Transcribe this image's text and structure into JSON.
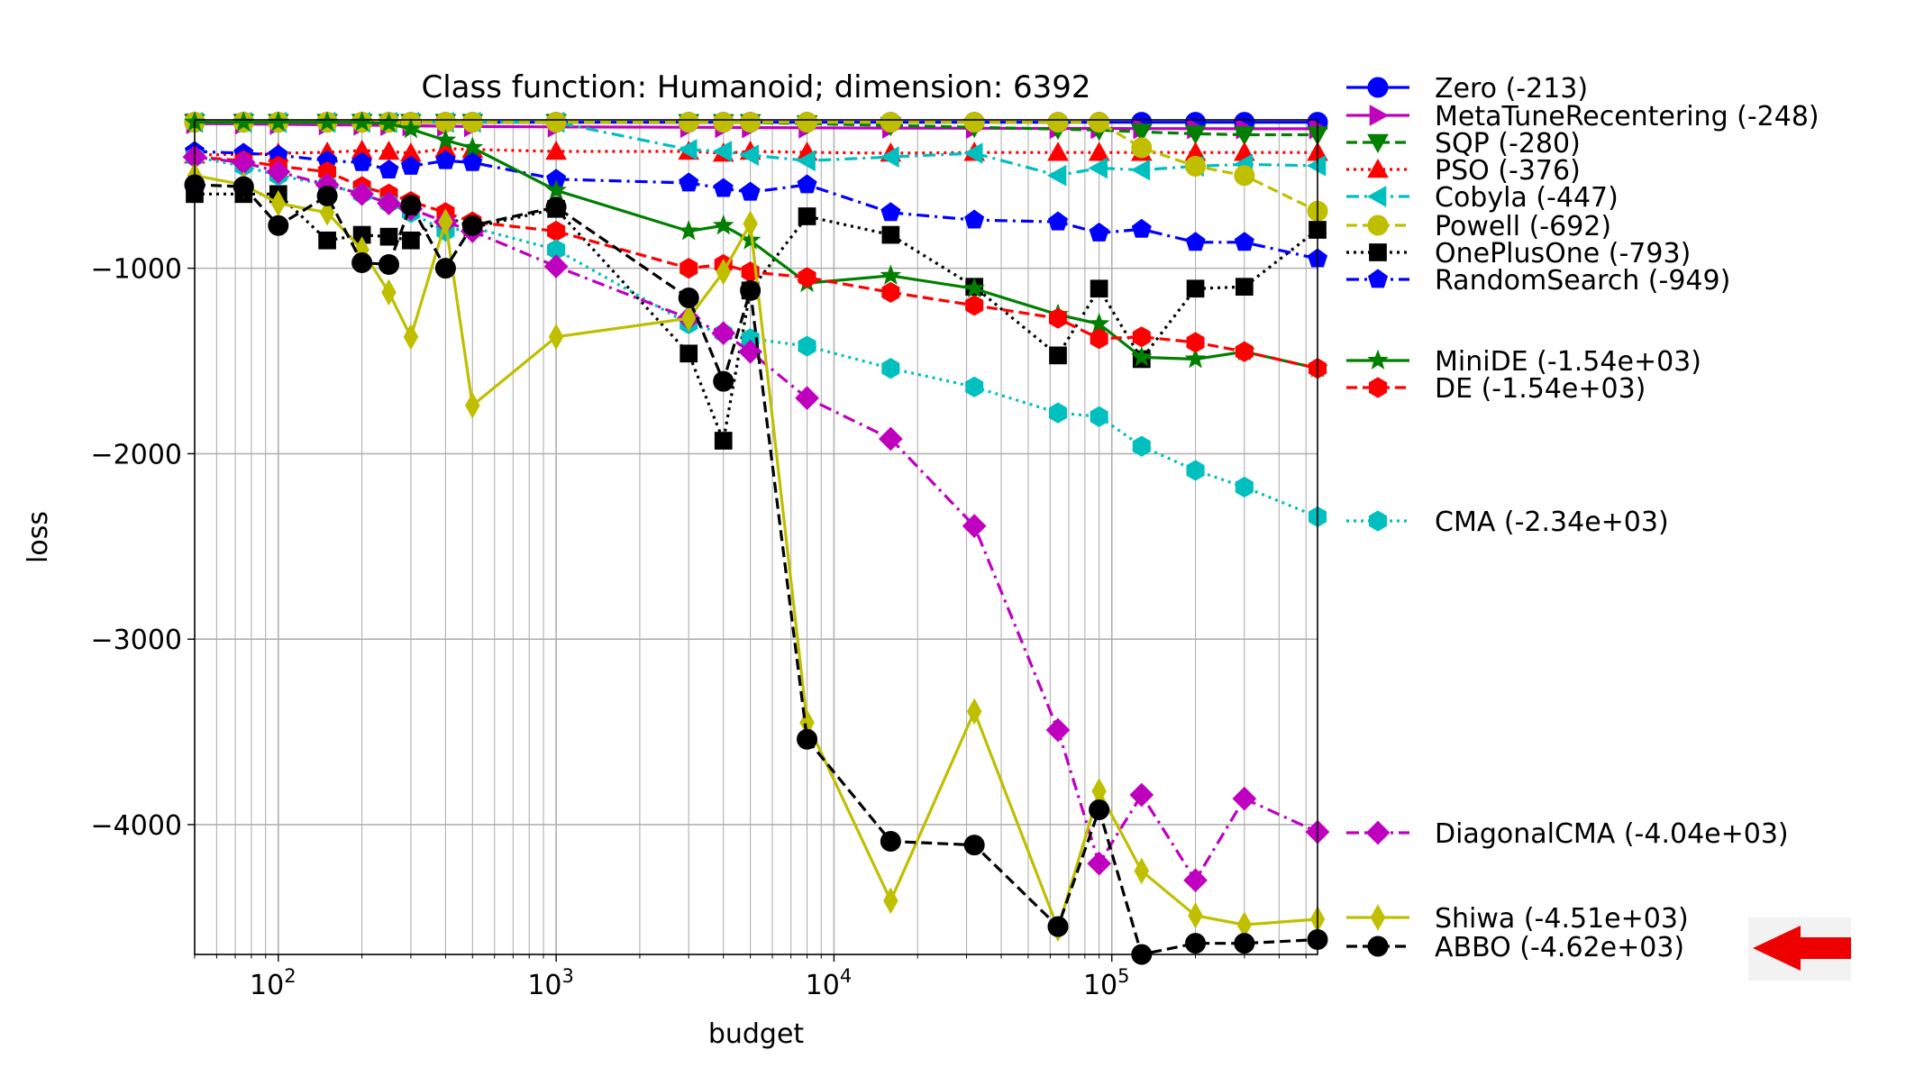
{
  "chart_data": {
    "type": "line",
    "title": "Class function: Humanoid; dimension: 6392",
    "xlabel": "budget",
    "ylabel": "loss",
    "xscale": "log",
    "xlim": [
      50,
      550000
    ],
    "ylim": [
      -4700,
      -200
    ],
    "grid": true,
    "legend_position": "right, outside plot",
    "x_ticks": [
      {
        "value": 100,
        "base": "10",
        "exp": "2"
      },
      {
        "value": 1000,
        "base": "10",
        "exp": "3"
      },
      {
        "value": 10000,
        "base": "10",
        "exp": "4"
      },
      {
        "value": 100000,
        "base": "10",
        "exp": "5"
      }
    ],
    "y_ticks": [
      {
        "value": -1000,
        "label": "−1000"
      },
      {
        "value": -2000,
        "label": "−2000"
      },
      {
        "value": -3000,
        "label": "−3000"
      },
      {
        "value": -4000,
        "label": "−4000"
      }
    ],
    "series": [
      {
        "name": "Zero (-213)",
        "color": "#0000ff",
        "dash": "solid",
        "marker": "circle",
        "x": [
          50,
          75,
          100,
          150,
          200,
          250,
          300,
          400,
          500,
          1000,
          3000,
          4000,
          5000,
          8000,
          16000,
          32000,
          64000,
          90000,
          128000,
          200000,
          300000,
          550000
        ],
        "y": [
          -213,
          -213,
          -213,
          -213,
          -213,
          -213,
          -213,
          -213,
          -213,
          -213,
          -213,
          -213,
          -213,
          -213,
          -213,
          -213,
          -213,
          -213,
          -213,
          -213,
          -213,
          -213
        ]
      },
      {
        "name": "MetaTuneRecentering (-248)",
        "color": "#bf00bf",
        "dash": "solid",
        "marker": "triangle-right",
        "x": [
          50,
          75,
          100,
          150,
          200,
          250,
          300,
          400,
          500,
          1000,
          3000,
          4000,
          5000,
          8000,
          16000,
          32000,
          64000,
          90000,
          128000,
          200000,
          300000,
          550000
        ],
        "y": [
          -220,
          -222,
          -224,
          -226,
          -228,
          -230,
          -232,
          -234,
          -236,
          -238,
          -240,
          -241,
          -242,
          -243,
          -244,
          -245,
          -246,
          -246,
          -247,
          -247,
          -248,
          -248
        ]
      },
      {
        "name": "SQP (-280)",
        "color": "#007f00",
        "dash": "dashed",
        "marker": "triangle-down",
        "x": [
          50,
          75,
          100,
          150,
          200,
          250,
          300,
          400,
          500,
          1000,
          3000,
          4000,
          5000,
          8000,
          16000,
          32000,
          64000,
          90000,
          128000,
          200000,
          300000,
          550000
        ],
        "y": [
          -213,
          -213,
          -213,
          -213,
          -213,
          -213,
          -213,
          -213,
          -213,
          -213,
          -214,
          -214,
          -214,
          -220,
          -230,
          -240,
          -250,
          -255,
          -265,
          -275,
          -280,
          -280
        ]
      },
      {
        "name": "PSO (-376)",
        "color": "#ff0000",
        "dash": "dotted",
        "marker": "triangle-up",
        "x": [
          50,
          75,
          100,
          150,
          200,
          250,
          300,
          400,
          500,
          1000,
          3000,
          4000,
          5000,
          8000,
          16000,
          32000,
          64000,
          90000,
          128000,
          200000,
          300000,
          550000
        ],
        "y": [
          -390,
          -385,
          -380,
          -375,
          -365,
          -370,
          -380,
          -355,
          -360,
          -370,
          -370,
          -380,
          -370,
          -375,
          -380,
          -376,
          -376,
          -376,
          -376,
          -376,
          -376,
          -376
        ]
      },
      {
        "name": "Cobyla (-447)",
        "color": "#00bfbf",
        "dash": "dashdot",
        "marker": "triangle-left",
        "x": [
          50,
          75,
          100,
          150,
          200,
          250,
          300,
          400,
          500,
          1000,
          3000,
          4000,
          5000,
          8000,
          16000,
          32000,
          64000,
          90000,
          128000,
          200000,
          300000,
          550000
        ],
        "y": [
          -213,
          -213,
          -213,
          -213,
          -213,
          -213,
          -213,
          -213,
          -213,
          -213,
          -360,
          -370,
          -390,
          -420,
          -400,
          -380,
          -500,
          -460,
          -470,
          -450,
          -440,
          -447
        ]
      },
      {
        "name": "Powell (-692)",
        "color": "#bfbf00",
        "dash": "dashed",
        "marker": "circle",
        "x": [
          50,
          75,
          100,
          150,
          200,
          250,
          300,
          400,
          500,
          1000,
          3000,
          4000,
          5000,
          8000,
          16000,
          32000,
          64000,
          90000,
          128000,
          200000,
          300000,
          550000
        ],
        "y": [
          -213,
          -213,
          -213,
          -213,
          -213,
          -213,
          -213,
          -213,
          -213,
          -213,
          -213,
          -213,
          -213,
          -213,
          -213,
          -213,
          -213,
          -213,
          -350,
          -450,
          -500,
          -692
        ]
      },
      {
        "name": "OnePlusOne (-793)",
        "color": "#000000",
        "dash": "dotted",
        "marker": "square",
        "x": [
          50,
          75,
          100,
          150,
          200,
          250,
          300,
          400,
          500,
          1000,
          3000,
          4000,
          5000,
          8000,
          16000,
          32000,
          64000,
          90000,
          128000,
          200000,
          300000,
          550000
        ],
        "y": [
          -600,
          -600,
          -600,
          -850,
          -820,
          -830,
          -850,
          -720,
          -780,
          -680,
          -1460,
          -1930,
          -1120,
          -720,
          -820,
          -1100,
          -1470,
          -1110,
          -1490,
          -1110,
          -1100,
          -793
        ]
      },
      {
        "name": "RandomSearch (-949)",
        "color": "#0000ff",
        "dash": "dashdot",
        "marker": "pentagon",
        "x": [
          50,
          75,
          100,
          150,
          200,
          250,
          300,
          400,
          500,
          1000,
          3000,
          4000,
          5000,
          8000,
          16000,
          32000,
          64000,
          90000,
          128000,
          200000,
          300000,
          550000
        ],
        "y": [
          -370,
          -380,
          -390,
          -420,
          -430,
          -470,
          -450,
          -420,
          -430,
          -520,
          -540,
          -570,
          -590,
          -550,
          -700,
          -740,
          -750,
          -810,
          -790,
          -860,
          -860,
          -949
        ]
      },
      {
        "name": "MiniDE (-1.54e+03)",
        "color": "#007f00",
        "dash": "solid",
        "marker": "star",
        "x": [
          50,
          75,
          100,
          150,
          200,
          250,
          300,
          400,
          500,
          1000,
          3000,
          4000,
          5000,
          8000,
          16000,
          32000,
          64000,
          90000,
          128000,
          200000,
          300000,
          550000
        ],
        "y": [
          -213,
          -213,
          -213,
          -213,
          -213,
          -220,
          -250,
          -310,
          -350,
          -580,
          -800,
          -770,
          -850,
          -1080,
          -1040,
          -1110,
          -1250,
          -1300,
          -1480,
          -1490,
          -1450,
          -1540
        ]
      },
      {
        "name": "DE (-1.54e+03)",
        "color": "#ff0000",
        "dash": "dashed",
        "marker": "hexagon",
        "x": [
          50,
          75,
          100,
          150,
          200,
          250,
          300,
          400,
          500,
          1000,
          3000,
          4000,
          5000,
          8000,
          16000,
          32000,
          64000,
          90000,
          128000,
          200000,
          300000,
          550000
        ],
        "y": [
          -400,
          -420,
          -450,
          -480,
          -560,
          -600,
          -640,
          -700,
          -750,
          -800,
          -1000,
          -980,
          -1020,
          -1050,
          -1130,
          -1200,
          -1270,
          -1380,
          -1370,
          -1400,
          -1450,
          -1540
        ]
      },
      {
        "name": "CMA (-2.34e+03)",
        "color": "#00bfbf",
        "dash": "dotted",
        "marker": "hexagon",
        "x": [
          50,
          75,
          100,
          150,
          200,
          250,
          300,
          400,
          500,
          1000,
          3000,
          4000,
          5000,
          8000,
          16000,
          32000,
          64000,
          90000,
          128000,
          200000,
          300000,
          550000
        ],
        "y": [
          -400,
          -450,
          -500,
          -550,
          -600,
          -650,
          -700,
          -800,
          -780,
          -900,
          -1300,
          -1350,
          -1380,
          -1420,
          -1540,
          -1640,
          -1780,
          -1800,
          -1960,
          -2090,
          -2180,
          -2340
        ]
      },
      {
        "name": "DiagonalCMA (-4.04e+03)",
        "color": "#bf00bf",
        "dash": "dashdot",
        "marker": "diamond",
        "x": [
          50,
          75,
          100,
          150,
          200,
          250,
          300,
          400,
          500,
          1000,
          3000,
          4000,
          5000,
          8000,
          16000,
          32000,
          64000,
          90000,
          128000,
          200000,
          300000,
          550000
        ],
        "y": [
          -400,
          -430,
          -480,
          -550,
          -600,
          -650,
          -680,
          -750,
          -800,
          -990,
          -1270,
          -1350,
          -1450,
          -1700,
          -1920,
          -2390,
          -3490,
          -4210,
          -3840,
          -4300,
          -3860,
          -4040
        ]
      },
      {
        "name": "Shiwa (-4.51e+03)",
        "color": "#bfbf00",
        "dash": "solid",
        "marker": "thin-diamond",
        "x": [
          50,
          75,
          100,
          150,
          200,
          250,
          300,
          400,
          500,
          1000,
          3000,
          4000,
          5000,
          8000,
          16000,
          32000,
          64000,
          90000,
          128000,
          200000,
          300000,
          550000
        ],
        "y": [
          -500,
          -550,
          -650,
          -700,
          -900,
          -1130,
          -1370,
          -750,
          -1740,
          -1370,
          -1270,
          -1020,
          -760,
          -3450,
          -4410,
          -3390,
          -4560,
          -3820,
          -4250,
          -4490,
          -4540,
          -4510
        ]
      },
      {
        "name": "ABBO (-4.62e+03)",
        "color": "#000000",
        "dash": "dashed",
        "marker": "circle",
        "x": [
          50,
          75,
          100,
          150,
          200,
          250,
          300,
          400,
          500,
          1000,
          3000,
          4000,
          5000,
          8000,
          16000,
          32000,
          64000,
          90000,
          128000,
          200000,
          300000,
          550000
        ],
        "y": [
          -550,
          -560,
          -770,
          -610,
          -970,
          -980,
          -660,
          -1000,
          -770,
          -670,
          -1160,
          -1610,
          -1120,
          -3540,
          -4090,
          -4110,
          -4550,
          -3920,
          -4700,
          -4640,
          -4640,
          -4620
        ]
      }
    ]
  }
}
